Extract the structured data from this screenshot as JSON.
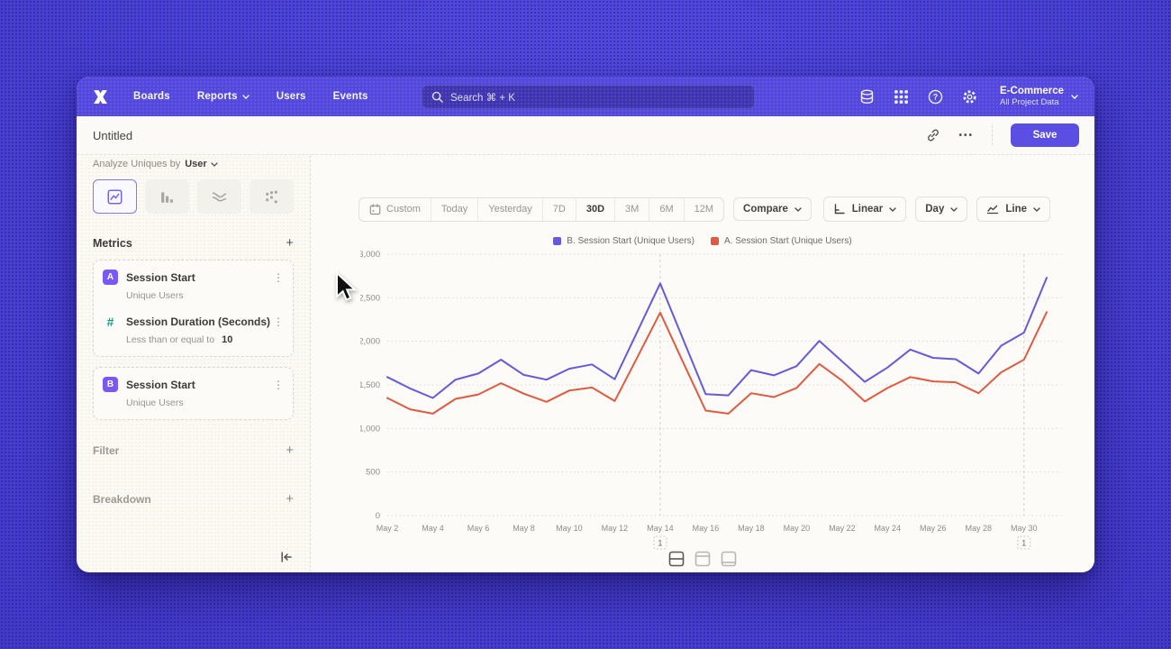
{
  "nav": {
    "logo": "mixpanel-logo",
    "items": [
      "Boards",
      "Reports",
      "Users",
      "Events"
    ],
    "search_placeholder": "Search  ⌘ + K",
    "project_name": "E-Commerce",
    "project_subtitle": "All Project Data"
  },
  "titlebar": {
    "title": "Untitled",
    "more": "•••",
    "save_label": "Save"
  },
  "sidebar": {
    "analyze_prefix": "Analyze Uniques by",
    "analyze_value": "User",
    "metrics_header": "Metrics",
    "add_label": "+",
    "cards": [
      {
        "badge": "A",
        "title": "Session Start",
        "subtitle": "Unique Users"
      },
      {
        "badge": "#",
        "title": "Session Duration (Seconds)",
        "subtitle": "Less than or equal to",
        "value": "10"
      },
      {
        "badge": "B",
        "title": "Session Start",
        "subtitle": "Unique Users"
      }
    ],
    "filter_label": "Filter",
    "breakdown_label": "Breakdown"
  },
  "toolbar": {
    "ranges": [
      "Custom",
      "Today",
      "Yesterday",
      "7D",
      "30D",
      "3M",
      "6M",
      "12M"
    ],
    "active_range": "30D",
    "compare_label": "Compare",
    "scale_label": "Linear",
    "interval_label": "Day",
    "type_label": "Line"
  },
  "chart_data": {
    "type": "line",
    "title": "",
    "xlabel": "",
    "ylabel": "",
    "dates": [
      "May 2",
      "May 3",
      "May 4",
      "May 5",
      "May 6",
      "May 7",
      "May 8",
      "May 9",
      "May 10",
      "May 11",
      "May 12",
      "May 13",
      "May 14",
      "May 15",
      "May 16",
      "May 17",
      "May 18",
      "May 19",
      "May 20",
      "May 21",
      "May 22",
      "May 23",
      "May 24",
      "May 25",
      "May 26",
      "May 27",
      "May 28",
      "May 29",
      "May 30",
      "May 31"
    ],
    "tick_every": 2,
    "ylim": [
      0,
      3000
    ],
    "yticks": [
      0,
      500,
      1000,
      1500,
      2000,
      2500,
      3000
    ],
    "grid": "horizontal-dotted",
    "legend_position": "top-center",
    "series": [
      {
        "name": "B. Session Start (Unique Users)",
        "color": "#665ad8",
        "values": [
          1590,
          1460,
          1350,
          1560,
          1630,
          1790,
          1615,
          1560,
          1685,
          1735,
          1565,
          2115,
          2665,
          2030,
          1395,
          1380,
          1670,
          1610,
          1715,
          2005,
          1770,
          1535,
          1700,
          1905,
          1810,
          1795,
          1630,
          1950,
          2100,
          2730
        ]
      },
      {
        "name": "A. Session Start (Unique Users)",
        "color": "#e05a41",
        "values": [
          1350,
          1220,
          1170,
          1340,
          1390,
          1520,
          1400,
          1305,
          1435,
          1470,
          1315,
          1820,
          2330,
          1765,
          1205,
          1170,
          1405,
          1360,
          1465,
          1740,
          1550,
          1310,
          1465,
          1590,
          1540,
          1530,
          1405,
          1645,
          1790,
          2335
        ]
      }
    ],
    "annotations": [
      {
        "date": "May 14",
        "index": 12,
        "label": "1"
      },
      {
        "date": "May 30",
        "index": 28,
        "label": "1"
      }
    ]
  }
}
